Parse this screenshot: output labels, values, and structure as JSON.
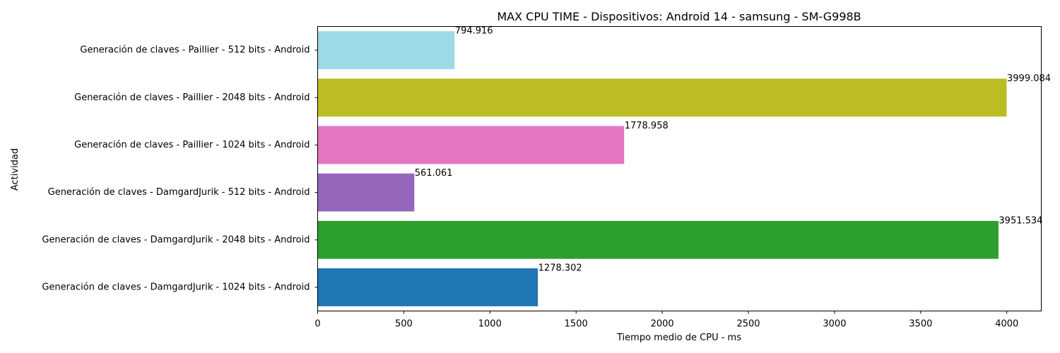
{
  "chart_data": {
    "type": "bar",
    "orientation": "horizontal",
    "title": "MAX CPU TIME - Dispositivos: Android 14 - samsung - SM-G998B",
    "xlabel": "Tiempo medio de CPU - ms",
    "ylabel": "Actividad",
    "xlim": [
      0,
      4200
    ],
    "xticks": [
      0,
      500,
      1000,
      1500,
      2000,
      2500,
      3000,
      3500,
      4000
    ],
    "grid": false,
    "categories": [
      "Generación de claves - DamgardJurik - 1024 bits - Android",
      "Generación de claves - DamgardJurik - 2048 bits - Android",
      "Generación de claves - DamgardJurik - 512 bits - Android",
      "Generación de claves - Paillier - 1024 bits - Android",
      "Generación de claves - Paillier - 2048 bits - Android",
      "Generación de claves - Paillier - 512 bits - Android"
    ],
    "values": [
      1278.302,
      3951.534,
      561.061,
      1778.958,
      3999.084,
      794.916
    ],
    "value_labels": [
      "1278.302",
      "3951.534",
      "561.061",
      "1778.958",
      "3999.084",
      "794.916"
    ],
    "colors": [
      "#1f77b4",
      "#2ca02c",
      "#9467bd",
      "#e377c2",
      "#bcbd22",
      "#9edae5"
    ]
  }
}
